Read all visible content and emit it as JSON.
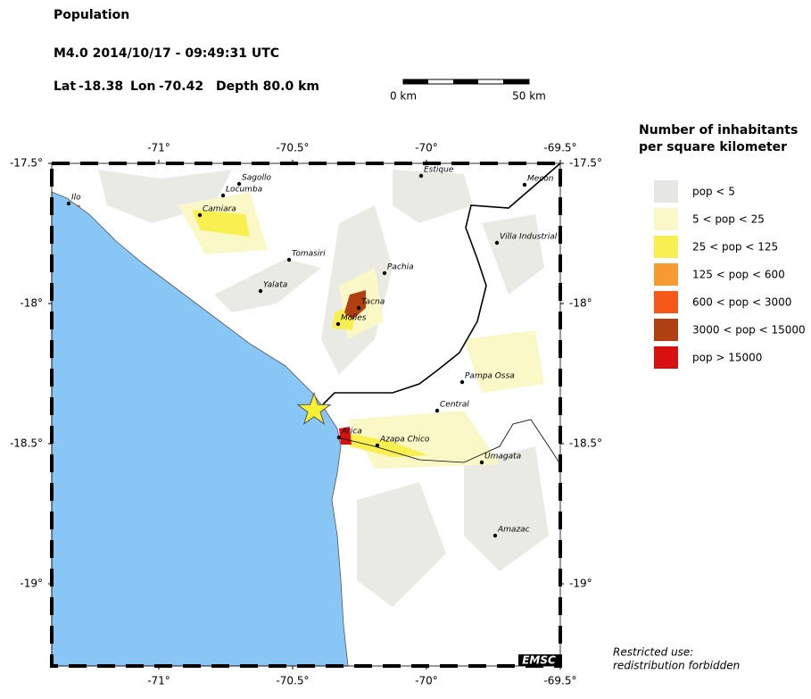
{
  "header": {
    "title": "Population",
    "event": "M4.0  2014/10/17 - 09:49:31 UTC",
    "lat_label": "Lat",
    "lat": -18.38,
    "lon_label": "Lon",
    "lon": -70.42,
    "depth": "Depth  80.0 km"
  },
  "scale_bar": {
    "start": "0 km",
    "end": "50 km"
  },
  "map": {
    "lon_ticks": [
      {
        "value": -71,
        "label": "-71°"
      },
      {
        "value": -70.5,
        "label": "-70.5°"
      },
      {
        "value": -70,
        "label": "-70°"
      },
      {
        "value": -69.5,
        "label": "-69.5°"
      }
    ],
    "lat_ticks": [
      {
        "value": -17.5,
        "label": "-17.5°"
      },
      {
        "value": -18,
        "label": "-18°"
      },
      {
        "value": -18.5,
        "label": "-18.5°"
      },
      {
        "value": -19,
        "label": "-19°"
      }
    ],
    "cities": [
      "Ilo",
      "Sagollo",
      "Locumba",
      "Camiara",
      "Estique",
      "Mecon",
      "Villa Industrial",
      "Tomasiri",
      "Pachia",
      "Yalata",
      "Tacna",
      "Molles",
      "Pampa Ossa",
      "Central",
      "Arica",
      "Azapa Chico",
      "Umagata",
      "Amazac"
    ],
    "logo": "EMSC"
  },
  "legend": {
    "title": [
      "Number of inhabitants",
      "per square kilometer"
    ],
    "items": [
      {
        "label": "pop < 5",
        "color": "#e6e6e2"
      },
      {
        "label": "5 < pop < 25",
        "color": "#fbf8c8"
      },
      {
        "label": "25 < pop < 125",
        "color": "#f8f050"
      },
      {
        "label": "125 < pop < 600",
        "color": "#f79a30"
      },
      {
        "label": "600 < pop < 3000",
        "color": "#f55818"
      },
      {
        "label": "3000 < pop < 15000",
        "color": "#b04010"
      },
      {
        "label": "pop > 15000",
        "color": "#d81010"
      }
    ]
  },
  "note": [
    "Restricted use:",
    "redistribution forbidden"
  ]
}
